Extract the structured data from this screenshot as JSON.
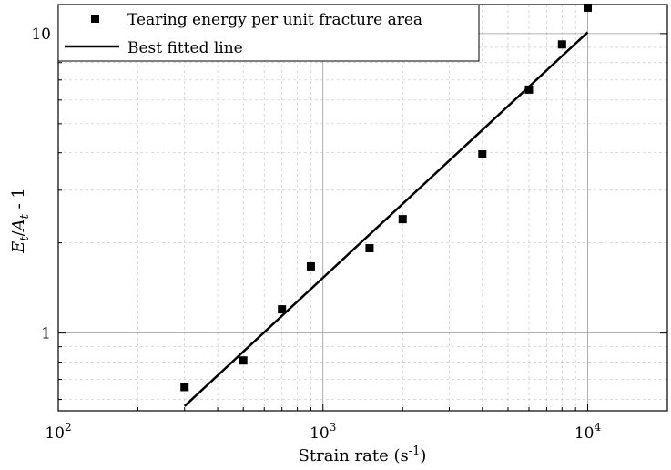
{
  "chart_data": {
    "type": "scatter",
    "xscale": "log",
    "yscale": "log",
    "xlim": [
      100,
      20000
    ],
    "ylim": [
      0.55,
      12.5
    ],
    "grid": true,
    "legend_position": "top",
    "xlabel_main": "Strain rate (s",
    "xlabel_sup": "-1",
    "xlabel_end": ")",
    "ylabel_parts": {
      "E": "E",
      "t1": "t",
      "slash": "/",
      "A": "A",
      "t2": "t",
      "tail": " - 1"
    },
    "x_ticks": [
      {
        "value": 100,
        "base": "10",
        "exp": "2"
      },
      {
        "value": 1000,
        "base": "10",
        "exp": "3"
      },
      {
        "value": 10000,
        "base": "10",
        "exp": "4"
      }
    ],
    "y_ticks": [
      {
        "value": 1,
        "label": "1"
      },
      {
        "value": 10,
        "label": "10"
      }
    ],
    "series": [
      {
        "name": "Tearing energy per unit fracture area",
        "kind": "points",
        "color": "#000000",
        "x": [
          300,
          500,
          700,
          900,
          1500,
          2000,
          4000,
          6000,
          8000,
          10000
        ],
        "y": [
          0.66,
          0.81,
          1.2,
          1.67,
          1.92,
          2.4,
          3.95,
          6.5,
          9.2,
          12.2
        ]
      },
      {
        "name": "Best fitted line",
        "kind": "line",
        "color": "#000000",
        "x": [
          300,
          10000
        ],
        "y": [
          0.57,
          10.1
        ]
      }
    ]
  }
}
